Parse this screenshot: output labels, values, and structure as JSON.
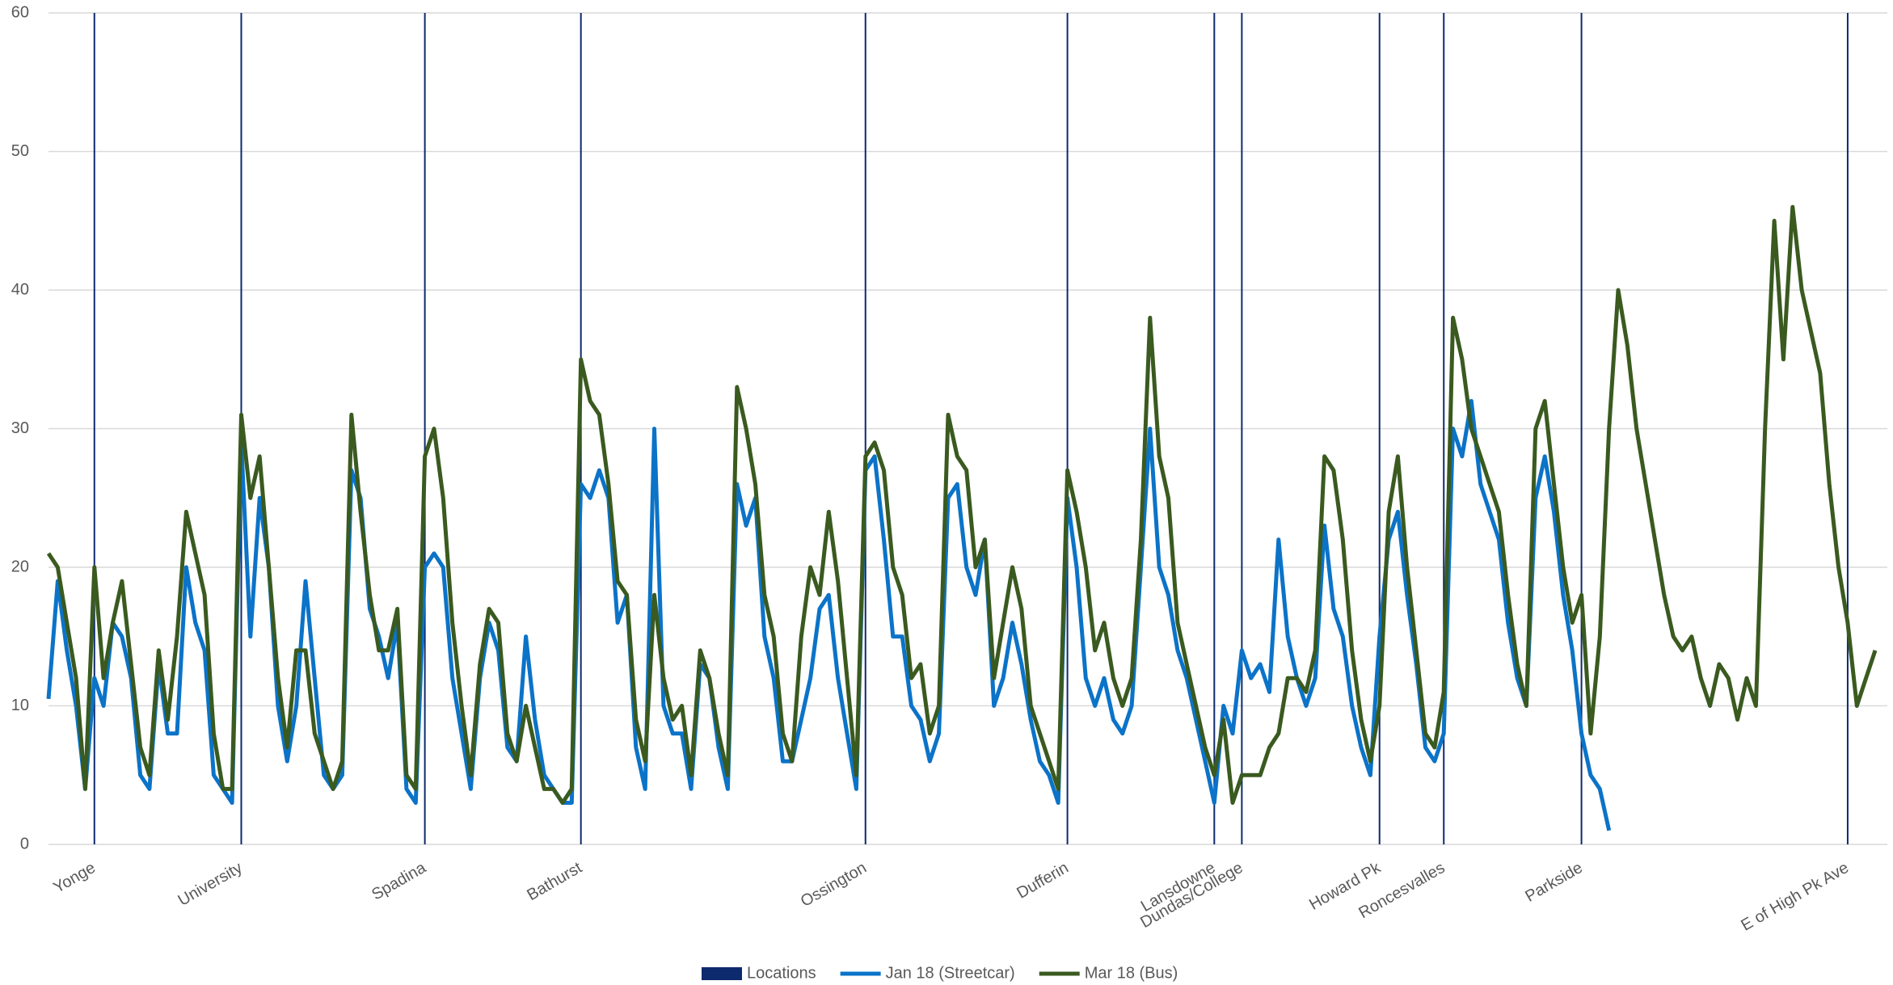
{
  "chart_data": {
    "type": "line",
    "ylim": [
      0,
      60
    ],
    "yticks": [
      0,
      10,
      20,
      30,
      40,
      50,
      60
    ],
    "grid": true,
    "legend": "bottom",
    "categories": [
      null,
      null,
      null,
      null,
      null,
      "Yonge",
      null,
      null,
      null,
      null,
      null,
      null,
      null,
      null,
      null,
      null,
      null,
      null,
      null,
      null,
      null,
      "University",
      null,
      null,
      null,
      null,
      null,
      null,
      null,
      null,
      null,
      null,
      null,
      null,
      null,
      null,
      null,
      null,
      null,
      null,
      null,
      "Spadina",
      null,
      null,
      null,
      null,
      null,
      null,
      null,
      null,
      null,
      null,
      null,
      null,
      null,
      null,
      null,
      null,
      "Bathurst",
      null,
      null,
      null,
      null,
      null,
      null,
      null,
      null,
      null,
      null,
      null,
      null,
      null,
      null,
      null,
      null,
      null,
      null,
      null,
      null,
      null,
      null,
      null,
      null,
      null,
      null,
      null,
      null,
      null,
      null,
      "Ossington",
      null,
      null,
      null,
      null,
      null,
      null,
      null,
      null,
      null,
      null,
      null,
      null,
      null,
      null,
      null,
      null,
      null,
      null,
      null,
      null,
      null,
      "Dufferin",
      null,
      null,
      null,
      null,
      null,
      null,
      null,
      null,
      null,
      null,
      null,
      null,
      null,
      null,
      null,
      "Lansdowne",
      null,
      null,
      "Dundas/College",
      null,
      null,
      null,
      null,
      null,
      null,
      null,
      null,
      null,
      null,
      null,
      null,
      null,
      null,
      "Howard Pk",
      null,
      null,
      null,
      null,
      null,
      null,
      "Roncesvalles",
      null,
      null,
      null,
      null,
      null,
      null,
      null,
      null,
      null,
      null,
      null,
      null,
      null,
      null,
      "Parkside",
      null,
      null,
      null,
      null,
      null,
      null,
      null,
      null,
      null,
      null,
      null,
      null,
      null,
      null,
      null,
      null,
      null,
      null,
      null,
      null,
      null,
      null,
      null,
      null,
      null,
      null,
      null,
      null,
      "E of High Pk Ave",
      null,
      null,
      null
    ],
    "series": [
      {
        "name": "Locations",
        "type": "bar",
        "color": "#0e2a6e",
        "values": [
          null,
          null,
          null,
          null,
          null,
          60,
          null,
          null,
          null,
          null,
          null,
          null,
          null,
          null,
          null,
          null,
          null,
          null,
          null,
          null,
          null,
          60,
          null,
          null,
          null,
          null,
          null,
          null,
          null,
          null,
          null,
          null,
          null,
          null,
          null,
          null,
          null,
          null,
          null,
          null,
          null,
          60,
          null,
          null,
          null,
          null,
          null,
          null,
          null,
          null,
          null,
          null,
          null,
          null,
          null,
          null,
          null,
          null,
          60,
          null,
          null,
          null,
          null,
          null,
          null,
          null,
          null,
          null,
          null,
          null,
          null,
          null,
          null,
          null,
          null,
          null,
          null,
          null,
          null,
          null,
          null,
          null,
          null,
          null,
          null,
          null,
          null,
          null,
          null,
          60,
          null,
          null,
          null,
          null,
          null,
          null,
          null,
          null,
          null,
          null,
          null,
          null,
          null,
          null,
          null,
          null,
          null,
          null,
          null,
          null,
          null,
          60,
          null,
          null,
          null,
          null,
          null,
          null,
          null,
          null,
          null,
          null,
          null,
          null,
          null,
          null,
          null,
          60,
          null,
          null,
          60,
          null,
          null,
          null,
          null,
          null,
          null,
          null,
          null,
          null,
          null,
          null,
          null,
          null,
          null,
          60,
          null,
          null,
          null,
          null,
          null,
          null,
          60,
          null,
          null,
          null,
          null,
          null,
          null,
          null,
          null,
          null,
          null,
          null,
          null,
          null,
          null,
          60,
          null,
          null,
          null,
          null,
          null,
          null,
          null,
          null,
          null,
          null,
          null,
          null,
          null,
          null,
          null,
          null,
          null,
          null,
          null,
          null,
          null,
          null,
          null,
          null,
          null,
          null,
          null,
          null,
          60,
          null,
          null,
          null
        ]
      },
      {
        "name": "Jan 18 (Streetcar)",
        "type": "line",
        "color": "#0b73c8",
        "values": [
          10.5,
          19,
          14,
          10,
          4,
          12,
          10,
          16,
          15,
          12,
          5,
          4,
          13,
          8,
          8,
          20,
          16,
          14,
          5,
          4,
          3,
          29,
          15,
          25,
          20,
          10,
          6,
          10,
          19,
          12,
          5,
          4,
          5,
          27,
          25,
          17,
          15,
          12,
          16,
          4,
          3,
          20,
          21,
          20,
          12,
          8,
          4,
          12,
          16,
          14,
          7,
          6,
          15,
          9,
          5,
          4,
          3,
          3,
          26,
          25,
          27,
          25,
          16,
          18,
          7,
          4,
          30,
          10,
          8,
          8,
          4,
          13,
          12,
          7,
          4,
          26,
          23,
          25,
          15,
          12,
          6,
          6,
          9,
          12,
          17,
          18,
          12,
          8,
          4,
          27,
          28,
          22,
          15,
          15,
          10,
          9,
          6,
          8,
          25,
          26,
          20,
          18,
          22,
          10,
          12,
          16,
          13,
          9,
          6,
          5,
          3,
          25,
          20,
          12,
          10,
          12,
          9,
          8,
          10,
          20,
          30,
          20,
          18,
          14,
          12,
          9,
          6,
          3,
          10,
          8,
          14,
          12,
          13,
          11,
          22,
          15,
          12,
          10,
          12,
          23,
          17,
          15,
          10,
          7,
          5,
          15,
          22,
          24,
          18,
          13,
          7,
          6,
          8,
          30,
          28,
          32,
          26,
          24,
          22,
          16,
          12,
          10,
          25,
          28,
          24,
          18,
          14,
          8,
          5,
          4,
          1,
          null,
          null,
          null,
          null,
          null,
          null,
          null,
          null,
          null,
          null,
          null,
          null,
          null,
          null,
          null,
          null,
          null,
          null,
          null,
          null,
          null,
          null,
          null,
          null,
          null,
          null,
          null,
          null,
          null
        ]
      },
      {
        "name": "Mar 18 (Bus)",
        "type": "line",
        "color": "#3a5a1f",
        "values": [
          21,
          20,
          16,
          12,
          4,
          20,
          12,
          16,
          19,
          13,
          7,
          5,
          14,
          9,
          15,
          24,
          21,
          18,
          8,
          4,
          4,
          31,
          25,
          28,
          20,
          12,
          7,
          14,
          14,
          8,
          6,
          4,
          6,
          31,
          24,
          18,
          14,
          14,
          17,
          5,
          4,
          28,
          30,
          25,
          16,
          10,
          5,
          13,
          17,
          16,
          8,
          6,
          10,
          7,
          4,
          4,
          3,
          4,
          35,
          32,
          31,
          26,
          19,
          18,
          9,
          6,
          18,
          12,
          9,
          10,
          5,
          14,
          12,
          8,
          5,
          33,
          30,
          26,
          18,
          15,
          8,
          6,
          15,
          20,
          18,
          24,
          19,
          12,
          5,
          28,
          29,
          27,
          20,
          18,
          12,
          13,
          8,
          10,
          31,
          28,
          27,
          20,
          22,
          12,
          16,
          20,
          17,
          10,
          8,
          6,
          4,
          27,
          24,
          20,
          14,
          16,
          12,
          10,
          12,
          22,
          38,
          28,
          25,
          16,
          13,
          10,
          7,
          5,
          9,
          3,
          5,
          5,
          5,
          7,
          8,
          12,
          12,
          11,
          14,
          28,
          27,
          22,
          14,
          9,
          6,
          10,
          24,
          28,
          20,
          14,
          8,
          7,
          11,
          38,
          35,
          30,
          28,
          26,
          24,
          18,
          13,
          10,
          30,
          32,
          26,
          20,
          16,
          18,
          8,
          15,
          30,
          40,
          36,
          30,
          26,
          22,
          18,
          15,
          14,
          15,
          12,
          10,
          13,
          12,
          9,
          12,
          10,
          30,
          45,
          35,
          46,
          40,
          37,
          34,
          26,
          20,
          16,
          10,
          12,
          14
        ]
      }
    ]
  }
}
